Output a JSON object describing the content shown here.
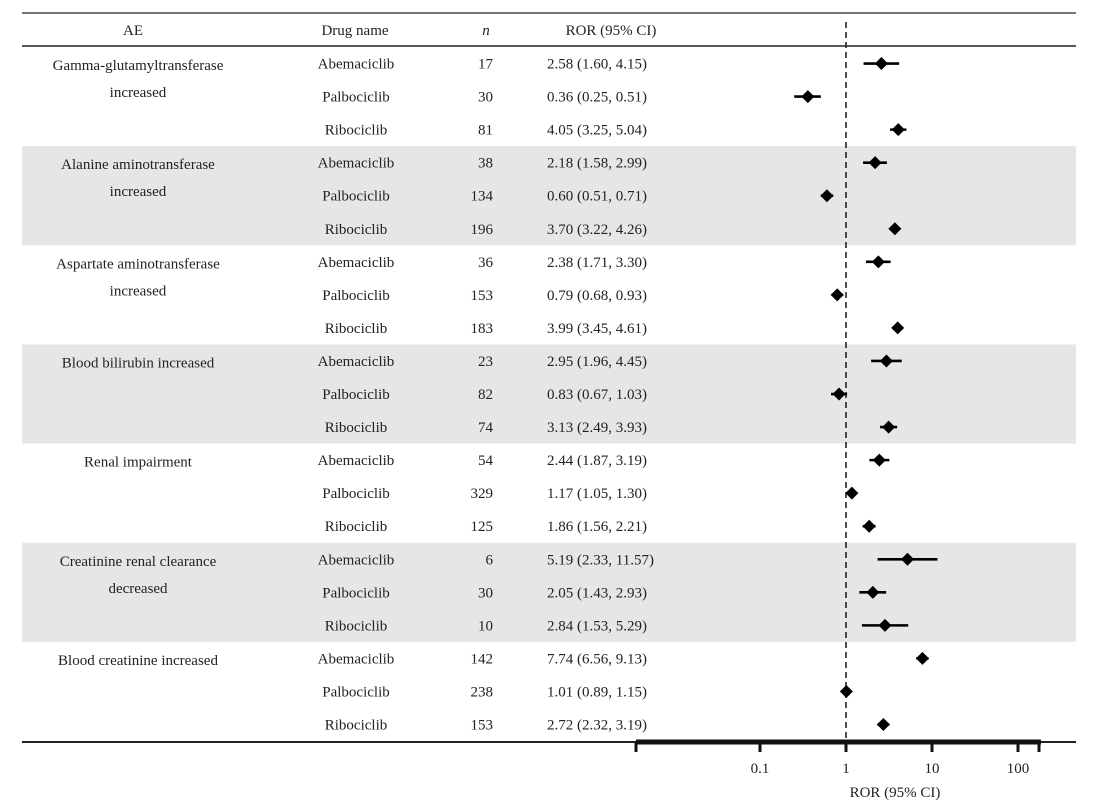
{
  "header": {
    "ae": "AE",
    "drug_name": "Drug name",
    "n": "n",
    "ror": "ROR (95% CI)"
  },
  "x_axis": {
    "label": "ROR (95% CI)",
    "ticks": [
      "0.1",
      "1",
      "10",
      "100"
    ]
  },
  "chart_data": {
    "type": "forest",
    "x_scale": "log",
    "reference_line": 1,
    "xlabel": "ROR (95% CI)",
    "xticks": [
      0.1,
      1,
      10,
      100
    ],
    "groups": [
      {
        "ae": "Gamma-glutamyltransferase increased",
        "ae_lines": [
          "Gamma-glutamyltransferase",
          "increased"
        ],
        "shaded": false,
        "rows": [
          {
            "drug": "Abemaciclib",
            "n": "17",
            "ror_text": "2.58 (1.60, 4.15)",
            "ror": 2.58,
            "lo": 1.6,
            "hi": 4.15
          },
          {
            "drug": "Palbociclib",
            "n": "30",
            "ror_text": "0.36 (0.25, 0.51)",
            "ror": 0.36,
            "lo": 0.25,
            "hi": 0.51
          },
          {
            "drug": "Ribociclib",
            "n": "81",
            "ror_text": "4.05 (3.25, 5.04)",
            "ror": 4.05,
            "lo": 3.25,
            "hi": 5.04
          }
        ]
      },
      {
        "ae": "Alanine aminotransferase increased",
        "ae_lines": [
          "Alanine aminotransferase",
          "increased"
        ],
        "shaded": true,
        "rows": [
          {
            "drug": "Abemaciclib",
            "n": "38",
            "ror_text": "2.18 (1.58, 2.99)",
            "ror": 2.18,
            "lo": 1.58,
            "hi": 2.99
          },
          {
            "drug": "Palbociclib",
            "n": "134",
            "ror_text": "0.60 (0.51, 0.71)",
            "ror": 0.6,
            "lo": 0.51,
            "hi": 0.71
          },
          {
            "drug": "Ribociclib",
            "n": "196",
            "ror_text": "3.70 (3.22, 4.26)",
            "ror": 3.7,
            "lo": 3.22,
            "hi": 4.26
          }
        ]
      },
      {
        "ae": "Aspartate aminotransferase increased",
        "ae_lines": [
          "Aspartate aminotransferase",
          "increased"
        ],
        "shaded": false,
        "rows": [
          {
            "drug": "Abemaciclib",
            "n": "36",
            "ror_text": "2.38 (1.71, 3.30)",
            "ror": 2.38,
            "lo": 1.71,
            "hi": 3.3
          },
          {
            "drug": "Palbociclib",
            "n": "153",
            "ror_text": "0.79 (0.68, 0.93)",
            "ror": 0.79,
            "lo": 0.68,
            "hi": 0.93
          },
          {
            "drug": "Ribociclib",
            "n": "183",
            "ror_text": "3.99 (3.45, 4.61)",
            "ror": 3.99,
            "lo": 3.45,
            "hi": 4.61
          }
        ]
      },
      {
        "ae": "Blood bilirubin increased",
        "ae_lines": [
          "Blood bilirubin increased"
        ],
        "shaded": true,
        "rows": [
          {
            "drug": "Abemaciclib",
            "n": "23",
            "ror_text": "2.95 (1.96, 4.45)",
            "ror": 2.95,
            "lo": 1.96,
            "hi": 4.45
          },
          {
            "drug": "Palbociclib",
            "n": "82",
            "ror_text": "0.83 (0.67, 1.03)",
            "ror": 0.83,
            "lo": 0.67,
            "hi": 1.03
          },
          {
            "drug": "Ribociclib",
            "n": "74",
            "ror_text": "3.13 (2.49, 3.93)",
            "ror": 3.13,
            "lo": 2.49,
            "hi": 3.93
          }
        ]
      },
      {
        "ae": "Renal impairment",
        "ae_lines": [
          "Renal impairment"
        ],
        "shaded": false,
        "rows": [
          {
            "drug": "Abemaciclib",
            "n": "54",
            "ror_text": "2.44 (1.87, 3.19)",
            "ror": 2.44,
            "lo": 1.87,
            "hi": 3.19
          },
          {
            "drug": "Palbociclib",
            "n": "329",
            "ror_text": "1.17 (1.05, 1.30)",
            "ror": 1.17,
            "lo": 1.05,
            "hi": 1.3
          },
          {
            "drug": "Ribociclib",
            "n": "125",
            "ror_text": "1.86 (1.56, 2.21)",
            "ror": 1.86,
            "lo": 1.56,
            "hi": 2.21
          }
        ]
      },
      {
        "ae": "Creatinine renal clearance decreased",
        "ae_lines": [
          "Creatinine renal clearance",
          "decreased"
        ],
        "shaded": true,
        "rows": [
          {
            "drug": "Abemaciclib",
            "n": "6",
            "ror_text": "5.19 (2.33, 11.57)",
            "ror": 5.19,
            "lo": 2.33,
            "hi": 11.57
          },
          {
            "drug": "Palbociclib",
            "n": "30",
            "ror_text": "2.05 (1.43, 2.93)",
            "ror": 2.05,
            "lo": 1.43,
            "hi": 2.93
          },
          {
            "drug": "Ribociclib",
            "n": "10",
            "ror_text": "2.84 (1.53, 5.29)",
            "ror": 2.84,
            "lo": 1.53,
            "hi": 5.29
          }
        ]
      },
      {
        "ae": "Blood creatinine increased",
        "ae_lines": [
          "Blood creatinine increased"
        ],
        "shaded": false,
        "rows": [
          {
            "drug": "Abemaciclib",
            "n": "142",
            "ror_text": "7.74 (6.56, 9.13)",
            "ror": 7.74,
            "lo": 6.56,
            "hi": 9.13
          },
          {
            "drug": "Palbociclib",
            "n": "238",
            "ror_text": "1.01 (0.89, 1.15)",
            "ror": 1.01,
            "lo": 0.89,
            "hi": 1.15
          },
          {
            "drug": "Ribociclib",
            "n": "153",
            "ror_text": "2.72 (2.32, 3.19)",
            "ror": 2.72,
            "lo": 2.32,
            "hi": 3.19
          }
        ]
      }
    ]
  }
}
